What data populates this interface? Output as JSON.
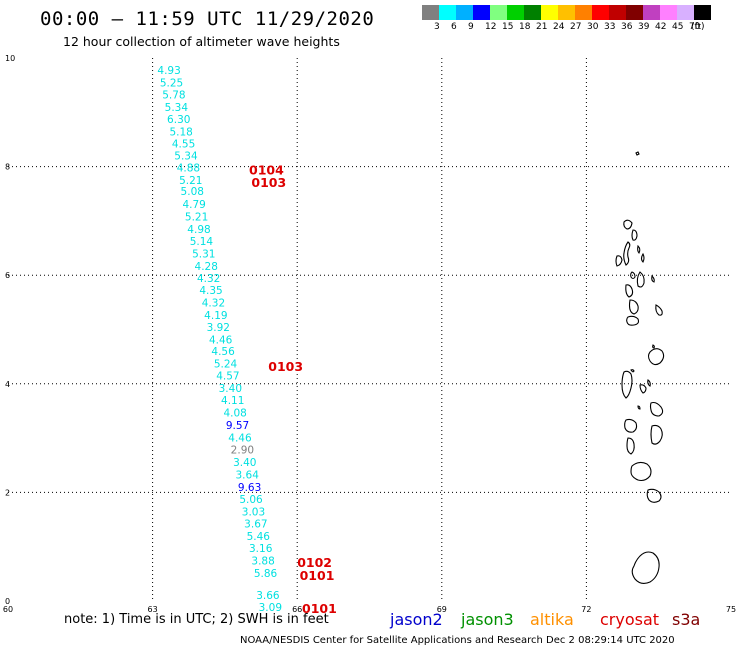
{
  "title": "00:00 – 11:59 UTC 11/29/2020",
  "subtitle": "12 hour collection of altimeter wave heights",
  "legend": {
    "colors": [
      "#808080",
      "#00ffff",
      "#00b0ff",
      "#0000ff",
      "#80ff80",
      "#00d000",
      "#008000",
      "#ffff00",
      "#ffc000",
      "#ff8000",
      "#ff0000",
      "#c00000",
      "#800000",
      "#c040c0",
      "#ff80ff",
      "#d8b0ff",
      "#000000"
    ],
    "labels": [
      "3",
      "6",
      "9",
      "12",
      "15",
      "18",
      "21",
      "24",
      "27",
      "30",
      "33",
      "36",
      "39",
      "42",
      "45",
      "70",
      "(ft)"
    ]
  },
  "axes": {
    "x_ticks": [
      "60",
      "63",
      "66",
      "69",
      "72",
      "75"
    ],
    "y_ticks": [
      "0",
      "2",
      "4",
      "6",
      "8",
      "10"
    ]
  },
  "observations": [
    {
      "lon": 63.1,
      "lat": 9.78,
      "v": "4.93",
      "c": "#00e0e0"
    },
    {
      "lon": 63.15,
      "lat": 9.55,
      "v": "5.25",
      "c": "#00e0e0"
    },
    {
      "lon": 63.2,
      "lat": 9.33,
      "v": "5.78",
      "c": "#00e0e0"
    },
    {
      "lon": 63.25,
      "lat": 9.1,
      "v": "5.34",
      "c": "#00e0e0"
    },
    {
      "lon": 63.3,
      "lat": 8.88,
      "v": "6.30",
      "c": "#00e0e0"
    },
    {
      "lon": 63.35,
      "lat": 8.65,
      "v": "5.18",
      "c": "#00e0e0"
    },
    {
      "lon": 63.4,
      "lat": 8.43,
      "v": "4.55",
      "c": "#00e0e0"
    },
    {
      "lon": 63.45,
      "lat": 8.2,
      "v": "5.34",
      "c": "#00e0e0"
    },
    {
      "lon": 63.5,
      "lat": 7.98,
      "v": "4.88",
      "c": "#00e0e0"
    },
    {
      "lon": 63.55,
      "lat": 7.75,
      "v": "5.21",
      "c": "#00e0e0"
    },
    {
      "lon": 63.58,
      "lat": 7.55,
      "v": "5.08",
      "c": "#00e0e0"
    },
    {
      "lon": 63.62,
      "lat": 7.31,
      "v": "4.79",
      "c": "#00e0e0"
    },
    {
      "lon": 63.67,
      "lat": 7.08,
      "v": "5.21",
      "c": "#00e0e0"
    },
    {
      "lon": 63.72,
      "lat": 6.85,
      "v": "4.98",
      "c": "#00e0e0"
    },
    {
      "lon": 63.77,
      "lat": 6.63,
      "v": "5.14",
      "c": "#00e0e0"
    },
    {
      "lon": 63.82,
      "lat": 6.4,
      "v": "5.31",
      "c": "#00e0e0"
    },
    {
      "lon": 63.87,
      "lat": 6.17,
      "v": "4.28",
      "c": "#00e0e0"
    },
    {
      "lon": 63.92,
      "lat": 5.95,
      "v": "4.32",
      "c": "#00e0e0"
    },
    {
      "lon": 63.97,
      "lat": 5.73,
      "v": "4.35",
      "c": "#00e0e0"
    },
    {
      "lon": 64.02,
      "lat": 5.5,
      "v": "4.32",
      "c": "#00e0e0"
    },
    {
      "lon": 64.07,
      "lat": 5.27,
      "v": "4.19",
      "c": "#00e0e0"
    },
    {
      "lon": 64.12,
      "lat": 5.05,
      "v": "3.92",
      "c": "#00e0e0"
    },
    {
      "lon": 64.17,
      "lat": 4.82,
      "v": "4.46",
      "c": "#00e0e0"
    },
    {
      "lon": 64.22,
      "lat": 4.6,
      "v": "4.56",
      "c": "#00e0e0"
    },
    {
      "lon": 64.27,
      "lat": 4.37,
      "v": "5.24",
      "c": "#00e0e0"
    },
    {
      "lon": 64.32,
      "lat": 4.15,
      "v": "4.57",
      "c": "#00e0e0"
    },
    {
      "lon": 64.37,
      "lat": 3.92,
      "v": "3.40",
      "c": "#00e0e0"
    },
    {
      "lon": 64.42,
      "lat": 3.7,
      "v": "4.11",
      "c": "#00e0e0"
    },
    {
      "lon": 64.47,
      "lat": 3.47,
      "v": "4.08",
      "c": "#00e0e0"
    },
    {
      "lon": 64.52,
      "lat": 3.24,
      "v": "9.57",
      "c": "#0000ff"
    },
    {
      "lon": 64.57,
      "lat": 3.01,
      "v": "4.46",
      "c": "#00e0e0"
    },
    {
      "lon": 64.62,
      "lat": 2.79,
      "v": "2.90",
      "c": "#808080"
    },
    {
      "lon": 64.67,
      "lat": 2.56,
      "v": "3.40",
      "c": "#00e0e0"
    },
    {
      "lon": 64.72,
      "lat": 2.33,
      "v": "3.64",
      "c": "#00e0e0"
    },
    {
      "lon": 64.77,
      "lat": 2.1,
      "v": "9.63",
      "c": "#0000ff"
    },
    {
      "lon": 64.8,
      "lat": 1.88,
      "v": "5.06",
      "c": "#00e0e0"
    },
    {
      "lon": 64.85,
      "lat": 1.65,
      "v": "3.03",
      "c": "#00e0e0"
    },
    {
      "lon": 64.9,
      "lat": 1.43,
      "v": "3.67",
      "c": "#00e0e0"
    },
    {
      "lon": 64.95,
      "lat": 1.2,
      "v": "5.46",
      "c": "#00e0e0"
    },
    {
      "lon": 65.0,
      "lat": 0.98,
      "v": "3.16",
      "c": "#00e0e0"
    },
    {
      "lon": 65.05,
      "lat": 0.75,
      "v": "3.88",
      "c": "#00e0e0"
    },
    {
      "lon": 65.1,
      "lat": 0.52,
      "v": "5.86",
      "c": "#00e0e0"
    },
    {
      "lon": 65.15,
      "lat": 0.11,
      "v": "3.66",
      "c": "#00e0e0"
    },
    {
      "lon": 65.2,
      "lat": -0.11,
      "v": "3.09",
      "c": "#00e0e0"
    }
  ],
  "time_labels": [
    {
      "lon": 65.0,
      "lat": 7.95,
      "v": "0104"
    },
    {
      "lon": 65.05,
      "lat": 7.72,
      "v": "0103"
    },
    {
      "lon": 65.4,
      "lat": 4.33,
      "v": "0103"
    },
    {
      "lon": 66.0,
      "lat": 0.72,
      "v": "0102"
    },
    {
      "lon": 66.05,
      "lat": 0.48,
      "v": "0101"
    },
    {
      "lon": 66.1,
      "lat": -0.13,
      "v": "0101"
    }
  ],
  "note": "note: 1) Time is in UTC; 2) SWH is in feet",
  "satellites": [
    {
      "name": "jason2",
      "color": "#0000cc"
    },
    {
      "name": "jason3",
      "color": "#009000"
    },
    {
      "name": "altika",
      "color": "#ff9000"
    },
    {
      "name": "cryosat",
      "color": "#dd0000"
    },
    {
      "name": "s3a",
      "color": "#800000"
    }
  ],
  "credit": "NOAA/NESDIS Center for Satellite Applications and Research   Dec  2 08:29:14 UTC 2020"
}
